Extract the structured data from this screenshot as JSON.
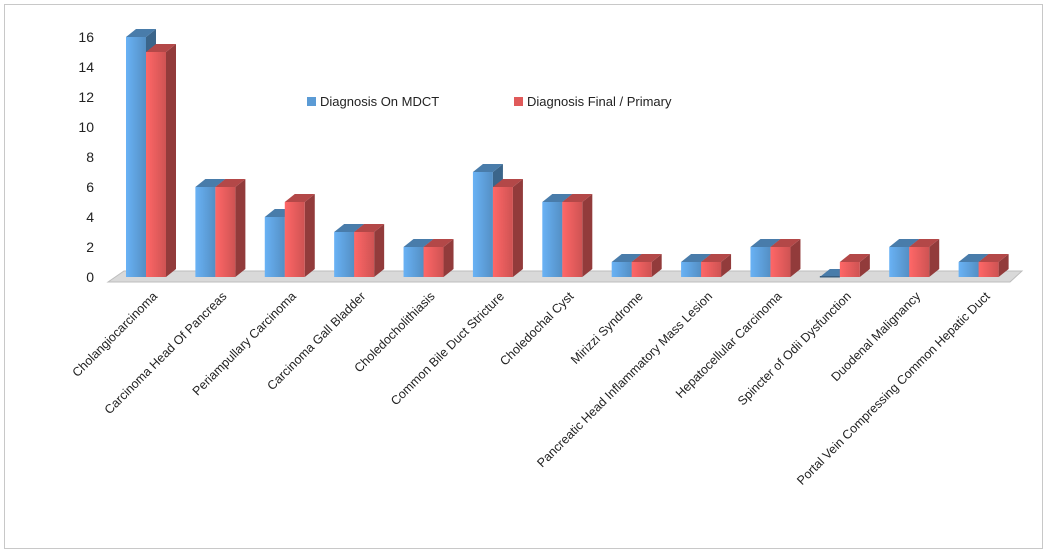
{
  "chart_data": {
    "type": "bar",
    "categories": [
      "Cholangiocarcinoma",
      "Carcinoma Head Of Pancreas",
      "Periampullary Carcinoma",
      "Carcinoma Gall Bladder",
      "Choledocholithiasis",
      "Common Bile Duct Stricture",
      "Choledochal Cyst",
      "Mirizzi Syndrome",
      "Pancreatic Head Inflammatory Mass Lesion",
      "Hepatocellular Carcinoma",
      "Spincter of Odii Dysfunction",
      "Duodenal Malignancy",
      "Portal Vein Compressing Common Hepatic Duct"
    ],
    "series": [
      {
        "name": "Diagnosis On MDCT",
        "color": "#5b9bd5",
        "values": [
          16,
          6,
          4,
          3,
          2,
          7,
          5,
          1,
          1,
          2,
          0,
          2,
          1
        ]
      },
      {
        "name": "Diagnosis Final / Primary",
        "color": "#e05a5a",
        "values": [
          15,
          6,
          5,
          3,
          2,
          6,
          5,
          1,
          1,
          2,
          1,
          2,
          1
        ]
      }
    ],
    "y_ticks": [
      "0",
      "2",
      "4",
      "6",
      "8",
      "10",
      "12",
      "14",
      "16"
    ],
    "ylim": [
      0,
      16
    ],
    "title": "",
    "xlabel": "",
    "ylabel": "",
    "legend_position": "top-center",
    "grid": false,
    "style": "3d-clustered-column"
  }
}
